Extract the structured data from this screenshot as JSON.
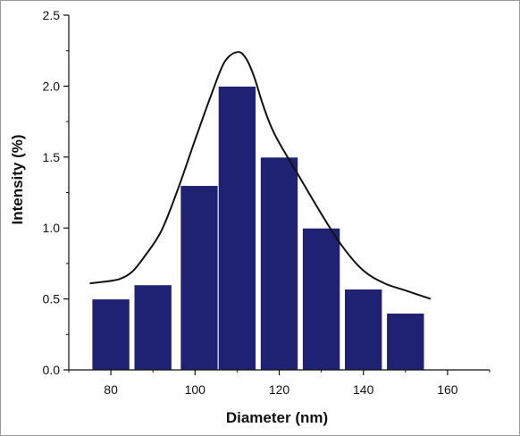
{
  "chart_data": {
    "type": "bar",
    "title": "",
    "xlabel": "Diameter (nm)",
    "ylabel": "Intensity (%)",
    "xlim": [
      70,
      170
    ],
    "ylim": [
      0,
      2.5
    ],
    "x_ticks": [
      80,
      100,
      120,
      140,
      160
    ],
    "x_tick_labels": [
      "80",
      "100",
      "120",
      "140",
      "160"
    ],
    "y_ticks": [
      0,
      0.5,
      1,
      1.5,
      2,
      2.5
    ],
    "y_tick_labels": [
      "0.0",
      "0.5",
      "1.0",
      "1.5",
      "2.0",
      "2.5"
    ],
    "bar_width": 9,
    "bar_color": "#1f2272",
    "bar_edge_color": "#ffffff",
    "bars": [
      {
        "x": 80,
        "value": 0.5
      },
      {
        "x": 90,
        "value": 0.6
      },
      {
        "x": 101,
        "value": 1.3
      },
      {
        "x": 110,
        "value": 2.0
      },
      {
        "x": 120,
        "value": 1.5
      },
      {
        "x": 130,
        "value": 1.0
      },
      {
        "x": 140,
        "value": 0.57
      },
      {
        "x": 150,
        "value": 0.4
      }
    ],
    "curve": {
      "color": "#111111",
      "points": [
        [
          75,
          0.61
        ],
        [
          78,
          0.62
        ],
        [
          82,
          0.64
        ],
        [
          85,
          0.69
        ],
        [
          88,
          0.8
        ],
        [
          92,
          0.98
        ],
        [
          96,
          1.28
        ],
        [
          100,
          1.62
        ],
        [
          104,
          1.95
        ],
        [
          107,
          2.17
        ],
        [
          110,
          2.24
        ],
        [
          112,
          2.2
        ],
        [
          114,
          2.07
        ],
        [
          116,
          1.88
        ],
        [
          118,
          1.72
        ],
        [
          120,
          1.6
        ],
        [
          125,
          1.35
        ],
        [
          130,
          1.1
        ],
        [
          135,
          0.87
        ],
        [
          140,
          0.7
        ],
        [
          145,
          0.61
        ],
        [
          150,
          0.56
        ],
        [
          156,
          0.5
        ]
      ]
    },
    "grid": false,
    "legend": "none"
  }
}
